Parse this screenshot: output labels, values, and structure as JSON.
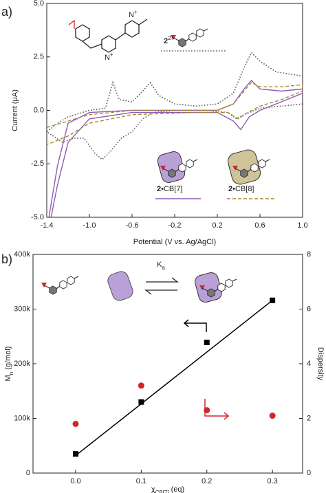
{
  "chart_data": [
    {
      "type": "line",
      "panel_label": "a)",
      "xlabel": "Potential (V vs. Ag/AgCl)",
      "ylabel": "Current (μA)",
      "xlim": [
        -1.4,
        1.0
      ],
      "ylim": [
        -5.0,
        5.0
      ],
      "xticks": [
        -1.4,
        {
          "value": -1.0,
          "label": "-1.0"
        },
        -0.6,
        -0.2,
        0.2,
        0.6,
        {
          "value": 1.0,
          "label": "1.0"
        }
      ],
      "yticks": [
        {
          "value": 5.0,
          "label": "5.0"
        },
        2.5,
        {
          "value": 0.0,
          "label": "0.0"
        },
        -2.5,
        {
          "value": -5.0,
          "label": "-5.0"
        }
      ],
      "structure_labels": [
        {
          "atom": "N",
          "charge": "+"
        },
        {
          "atom": "N",
          "charge": "+"
        }
      ],
      "series": [
        {
          "name": "2",
          "name_sup": "2+",
          "color": "#555555",
          "style": "dotted",
          "x": [
            1.0,
            0.8,
            0.6,
            0.45,
            0.38,
            0.3,
            0.1,
            -0.2,
            -0.4,
            -0.5,
            -0.6,
            -0.7,
            -0.8,
            -0.88,
            -0.95,
            -1.05,
            -1.15,
            -1.25,
            -1.4,
            -1.3,
            -1.2,
            -1.0,
            -0.85,
            -0.78,
            -0.72,
            -0.6,
            -0.5,
            -0.43,
            -0.35,
            -0.2,
            0.0,
            0.2,
            0.35,
            0.45,
            0.52,
            0.6,
            0.75,
            1.0
          ],
          "values": [
            0.3,
            0.2,
            0.1,
            -0.2,
            -0.4,
            -0.1,
            0.0,
            0.0,
            -0.1,
            -0.4,
            -1.0,
            -1.3,
            -1.9,
            -2.3,
            -2.0,
            -1.3,
            -1.3,
            -1.5,
            -1.0,
            -0.6,
            -0.3,
            0.0,
            0.1,
            1.3,
            0.5,
            0.4,
            0.9,
            1.3,
            0.7,
            0.3,
            0.2,
            0.3,
            0.8,
            2.0,
            2.7,
            2.3,
            1.8,
            1.6
          ]
        },
        {
          "name": "2",
          "name_rest": "•CB[7]",
          "color": "#8e5bb5",
          "style": "solid",
          "x": [
            -1.38,
            -1.3,
            -1.2,
            -1.0,
            -0.6,
            0.2,
            0.35,
            0.45,
            0.52,
            0.6,
            0.8,
            1.0,
            1.0,
            0.8,
            0.6,
            0.5,
            0.42,
            0.35,
            0.2,
            -0.6,
            -1.0,
            -1.2,
            -1.3,
            -1.36
          ],
          "values": [
            -5.0,
            -2.6,
            -0.6,
            -0.1,
            0.0,
            0.0,
            0.3,
            1.0,
            1.4,
            1.0,
            0.9,
            1.0,
            0.8,
            0.4,
            0.0,
            -0.3,
            -0.9,
            -0.5,
            -0.1,
            -0.1,
            -0.4,
            -1.5,
            -3.5,
            -5.0
          ]
        },
        {
          "name": "2",
          "name_rest": "•CB[8]",
          "color": "#a28a2a",
          "style": "dashed",
          "x": [
            -1.4,
            -1.2,
            -1.0,
            -0.6,
            0.2,
            0.35,
            0.45,
            0.52,
            0.6,
            0.8,
            1.0,
            1.0,
            0.8,
            0.6,
            0.45,
            0.4,
            0.3,
            0.0,
            -0.6,
            -1.0,
            -1.2,
            -1.4
          ],
          "values": [
            -0.8,
            -0.5,
            -0.2,
            0.0,
            0.0,
            0.3,
            0.9,
            1.3,
            1.1,
            1.1,
            1.2,
            0.9,
            0.5,
            0.2,
            -0.2,
            -0.4,
            -0.1,
            -0.1,
            -0.2,
            -0.6,
            -1.2,
            -1.6
          ]
        }
      ]
    },
    {
      "type": "scatter",
      "panel_label": "b)",
      "xlabel": {
        "main": "χ",
        "sub": "CB[7]",
        "rest": " (eq)"
      },
      "ylabel": {
        "main": "M",
        "sub": "n",
        "rest": " (g/mol)"
      },
      "y2label": "Dispersity",
      "equilibrium_label": {
        "main": "K",
        "sub": "a"
      },
      "xlim": [
        -0.065,
        0.346
      ],
      "ylim": [
        0,
        400000
      ],
      "y2lim": [
        0,
        8
      ],
      "xticks": [
        {
          "value": 0.0,
          "label": "0.0"
        },
        0.1,
        0.2,
        0.3
      ],
      "yticks": [
        {
          "value": 0,
          "label": "0"
        },
        {
          "value": 100000,
          "label": "100k"
        },
        {
          "value": 200000,
          "label": "200k"
        },
        {
          "value": 300000,
          "label": "300k"
        },
        {
          "value": 400000,
          "label": "400k"
        }
      ],
      "y2ticks": [
        0,
        2,
        4,
        6,
        8
      ],
      "series": [
        {
          "marker": "square",
          "color": "#000000",
          "x": [
            0.0,
            0.1,
            0.2,
            0.3
          ],
          "values": [
            35000,
            130000,
            239000,
            316000
          ]
        },
        {
          "marker": "circle",
          "color": "#d0262d",
          "axis": "y2",
          "x": [
            0.0,
            0.1,
            0.2,
            0.3
          ],
          "values": [
            1.8,
            3.2,
            2.3,
            2.1
          ]
        }
      ],
      "trend_line": {
        "x": [
          0.0,
          0.3
        ],
        "values": [
          32000,
          316000
        ]
      }
    }
  ]
}
